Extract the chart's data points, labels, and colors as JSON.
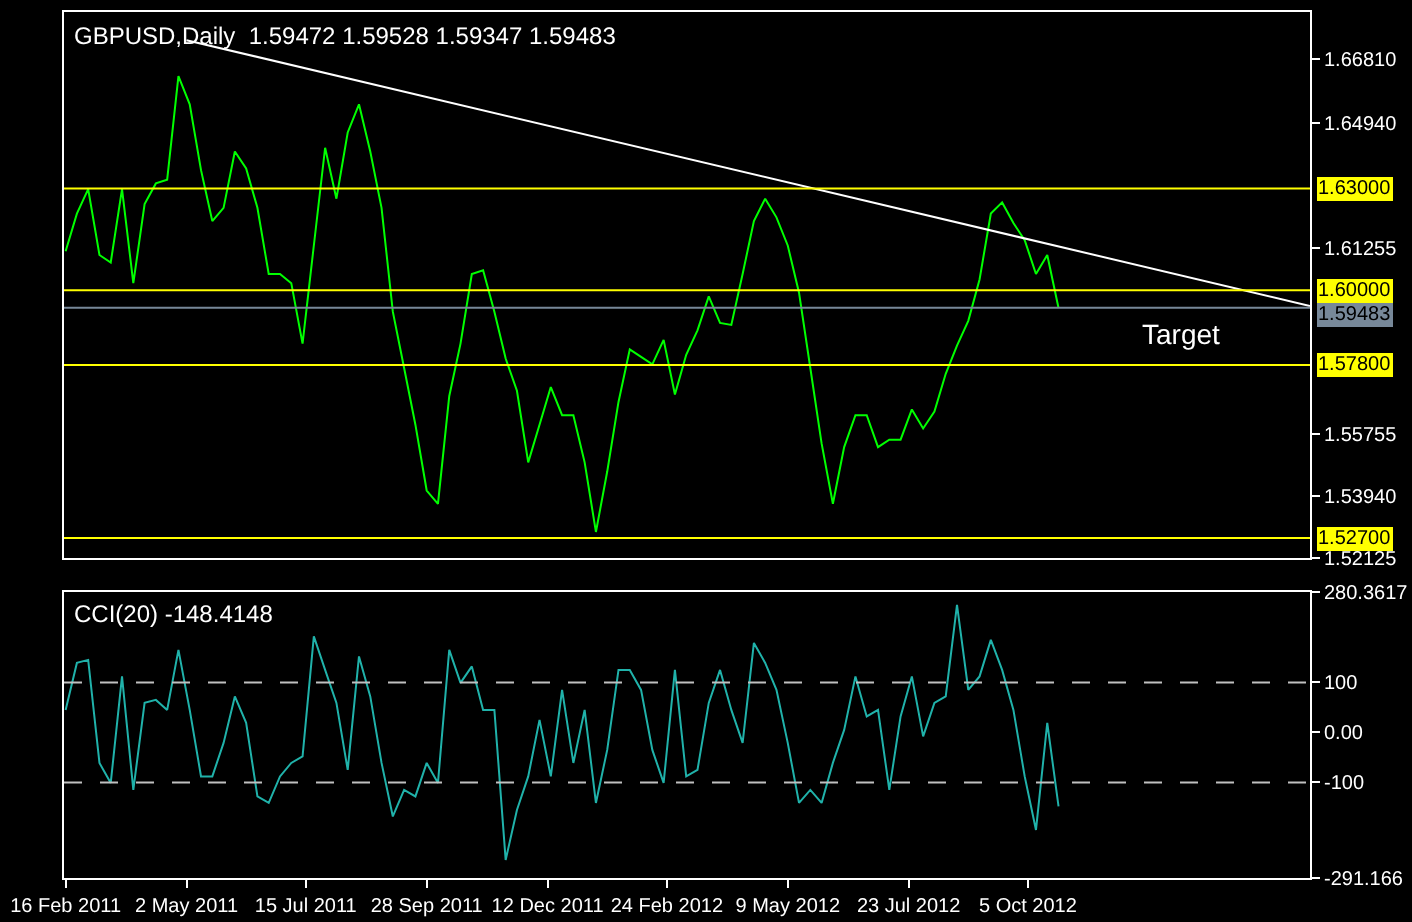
{
  "chart_data": [
    {
      "type": "line",
      "title": "GBPUSD,Daily  1.59472 1.59528 1.59347 1.59483",
      "x": [
        "2011-02-16",
        "2011-02-23",
        "2011-03-02",
        "2011-03-09",
        "2011-03-16",
        "2011-03-23",
        "2011-03-30",
        "2011-04-06",
        "2011-04-13",
        "2011-04-20",
        "2011-04-27",
        "2011-05-04",
        "2011-05-11",
        "2011-05-18",
        "2011-05-25",
        "2011-06-01",
        "2011-06-08",
        "2011-06-15",
        "2011-06-22",
        "2011-06-29",
        "2011-07-06",
        "2011-07-13",
        "2011-07-20",
        "2011-07-27",
        "2011-08-03",
        "2011-08-10",
        "2011-08-17",
        "2011-08-24",
        "2011-08-31",
        "2011-09-07",
        "2011-09-14",
        "2011-09-21",
        "2011-09-28",
        "2011-10-05",
        "2011-10-12",
        "2011-10-19",
        "2011-10-26",
        "2011-11-02",
        "2011-11-09",
        "2011-11-16",
        "2011-11-23",
        "2011-11-30",
        "2011-12-07",
        "2011-12-14",
        "2011-12-21",
        "2011-12-28",
        "2012-01-04",
        "2012-01-11",
        "2012-01-18",
        "2012-01-25",
        "2012-02-01",
        "2012-02-08",
        "2012-02-15",
        "2012-02-22",
        "2012-02-29",
        "2012-03-07",
        "2012-03-14",
        "2012-03-21",
        "2012-03-28",
        "2012-04-04",
        "2012-04-11",
        "2012-04-18",
        "2012-04-25",
        "2012-05-02",
        "2012-05-09",
        "2012-05-16",
        "2012-05-23",
        "2012-05-30",
        "2012-06-06",
        "2012-06-13",
        "2012-06-20",
        "2012-06-27",
        "2012-07-04",
        "2012-07-11",
        "2012-07-18",
        "2012-07-25",
        "2012-08-01",
        "2012-08-08",
        "2012-08-15",
        "2012-08-22",
        "2012-08-29",
        "2012-09-05",
        "2012-09-12",
        "2012-09-19",
        "2012-09-26",
        "2012-10-03",
        "2012-10-10",
        "2012-10-17",
        "2012-10-24"
      ],
      "series": [
        {
          "color": "#00ff00",
          "values": [
            1.6115,
            1.6226,
            1.6298,
            1.6104,
            1.6082,
            1.6298,
            1.6021,
            1.6254,
            1.6315,
            1.6326,
            1.6631,
            1.6548,
            1.6354,
            1.6204,
            1.6243,
            1.6409,
            1.6359,
            1.6243,
            1.6048,
            1.6048,
            1.6021,
            1.5843,
            1.6132,
            1.642,
            1.627,
            1.6465,
            1.6548,
            1.6409,
            1.6243,
            1.5937,
            1.5771,
            1.5604,
            1.541,
            1.5371,
            1.5688,
            1.5843,
            1.6048,
            1.6059,
            1.5937,
            1.5799,
            1.5704,
            1.5493,
            1.5604,
            1.5715,
            1.5632,
            1.5632,
            1.5493,
            1.5288,
            1.5466,
            1.5671,
            1.5826,
            1.5804,
            1.5782,
            1.5854,
            1.5693,
            1.581,
            1.5882,
            1.5982,
            1.5904,
            1.5898,
            1.6048,
            1.6204,
            1.627,
            1.6215,
            1.6132,
            1.5993,
            1.5771,
            1.5549,
            1.5371,
            1.5538,
            1.5632,
            1.5632,
            1.5538,
            1.556,
            1.556,
            1.5649,
            1.5593,
            1.5643,
            1.5754,
            1.5837,
            1.591,
            1.6032,
            1.6226,
            1.6259,
            1.6198,
            1.6148,
            1.6048,
            1.6104,
            1.5948
          ]
        },
        {
          "color": "#ffffff",
          "x": [
            "2011-05-02",
            "2013-03-29"
          ],
          "values": [
            1.6737,
            1.5954
          ]
        }
      ],
      "xlim": [
        "2011-02-15",
        "2013-03-29"
      ],
      "ylim": [
        1.52125,
        1.682
      ],
      "yticks": [
        {
          "value": 1.6681,
          "label": "1.66810"
        },
        {
          "value": 1.6494,
          "label": "1.64940"
        },
        {
          "value": 1.61255,
          "label": "1.61255"
        },
        {
          "value": 1.55755,
          "label": "1.55755"
        },
        {
          "value": 1.5394,
          "label": "1.53940"
        },
        {
          "value": 1.52125,
          "label": "1.52125"
        }
      ],
      "ref_lines": [
        {
          "axis": "y",
          "value": 1.63,
          "label": "1.63000",
          "color": "#ffff00"
        },
        {
          "axis": "y",
          "value": 1.6,
          "label": "1.60000",
          "color": "#ffff00"
        },
        {
          "axis": "y",
          "value": 1.59483,
          "label": "1.59483",
          "color": "#778899"
        },
        {
          "axis": "y",
          "value": 1.578,
          "label": "1.57800",
          "color": "#ffff00"
        },
        {
          "axis": "y",
          "value": 1.527,
          "label": "1.52700",
          "color": "#ffff00"
        }
      ],
      "annotations": [
        {
          "text": "Target",
          "x": "2013-01-08",
          "y": 1.581
        }
      ],
      "tick_labels": "y",
      "grid": false
    },
    {
      "type": "line",
      "title": "CCI(20) -148.4148",
      "x": [
        "2011-02-16",
        "2011-02-23",
        "2011-03-02",
        "2011-03-09",
        "2011-03-16",
        "2011-03-23",
        "2011-03-30",
        "2011-04-06",
        "2011-04-13",
        "2011-04-20",
        "2011-04-27",
        "2011-05-04",
        "2011-05-11",
        "2011-05-18",
        "2011-05-25",
        "2011-06-01",
        "2011-06-08",
        "2011-06-15",
        "2011-06-22",
        "2011-06-29",
        "2011-07-06",
        "2011-07-13",
        "2011-07-20",
        "2011-07-27",
        "2011-08-03",
        "2011-08-10",
        "2011-08-17",
        "2011-08-24",
        "2011-08-31",
        "2011-09-07",
        "2011-09-14",
        "2011-09-21",
        "2011-09-28",
        "2011-10-05",
        "2011-10-12",
        "2011-10-19",
        "2011-10-26",
        "2011-11-02",
        "2011-11-09",
        "2011-11-16",
        "2011-11-23",
        "2011-11-30",
        "2011-12-07",
        "2011-12-14",
        "2011-12-21",
        "2011-12-28",
        "2012-01-04",
        "2012-01-11",
        "2012-01-18",
        "2012-01-25",
        "2012-02-01",
        "2012-02-08",
        "2012-02-15",
        "2012-02-22",
        "2012-02-29",
        "2012-03-07",
        "2012-03-14",
        "2012-03-21",
        "2012-03-28",
        "2012-04-04",
        "2012-04-11",
        "2012-04-18",
        "2012-04-25",
        "2012-05-02",
        "2012-05-09",
        "2012-05-16",
        "2012-05-23",
        "2012-05-30",
        "2012-06-06",
        "2012-06-13",
        "2012-06-20",
        "2012-06-27",
        "2012-07-04",
        "2012-07-11",
        "2012-07-18",
        "2012-07-25",
        "2012-08-01",
        "2012-08-08",
        "2012-08-15",
        "2012-08-22",
        "2012-08-29",
        "2012-09-05",
        "2012-09-12",
        "2012-09-19",
        "2012-09-26",
        "2012-10-03",
        "2012-10-10",
        "2012-10-17",
        "2012-10-24"
      ],
      "series": [
        {
          "color": "#20b2aa",
          "values": [
            45,
            139,
            145,
            -61,
            -101,
            112,
            -115,
            59,
            65,
            45,
            165,
            45,
            -88,
            -88,
            -21,
            72,
            19,
            -128,
            -141,
            -88,
            -61,
            -48,
            192,
            125,
            59,
            -75,
            152,
            72,
            -61,
            -168,
            -115,
            -128,
            -61,
            -101,
            165,
            99,
            132,
            45,
            45,
            -255,
            -155,
            -88,
            25,
            -88,
            85,
            -61,
            45,
            -141,
            -35,
            125,
            125,
            85,
            -35,
            -101,
            125,
            -88,
            -75,
            59,
            125,
            45,
            -21,
            179,
            139,
            85,
            -21,
            -141,
            -115,
            -141,
            -61,
            5,
            112,
            32,
            45,
            -115,
            32,
            112,
            -8,
            59,
            72,
            255,
            85,
            112,
            185,
            125,
            45,
            -88,
            -195,
            19,
            -148
          ]
        }
      ],
      "xlim": [
        "2011-02-15",
        "2013-03-29"
      ],
      "xticks": [
        {
          "value": "2011-02-16",
          "label": "16 Feb 2011"
        },
        {
          "value": "2011-05-02",
          "label": "2 May 2011"
        },
        {
          "value": "2011-07-15",
          "label": "15 Jul 2011"
        },
        {
          "value": "2011-09-28",
          "label": "28 Sep 2011"
        },
        {
          "value": "2011-12-12",
          "label": "12 Dec 2011"
        },
        {
          "value": "2012-02-24",
          "label": "24 Feb 2012"
        },
        {
          "value": "2012-05-09",
          "label": "9 May 2012"
        },
        {
          "value": "2012-07-23",
          "label": "23 Jul 2012"
        },
        {
          "value": "2012-10-05",
          "label": "5 Oct 2012"
        }
      ],
      "ylim": [
        -291.166,
        280.3617
      ],
      "yticks": [
        {
          "value": 280.3617,
          "label": "280.3617"
        },
        100,
        {
          "value": 0,
          "label": "0.00"
        },
        -100,
        {
          "value": -291.166,
          "label": "-291.166"
        }
      ],
      "ref_lines": [
        {
          "axis": "y",
          "value": 100,
          "color": "#c0c0c0",
          "line_style": "dashed"
        },
        {
          "axis": "y",
          "value": -100,
          "color": "#c0c0c0",
          "line_style": "dashed"
        }
      ],
      "grid": false
    }
  ]
}
